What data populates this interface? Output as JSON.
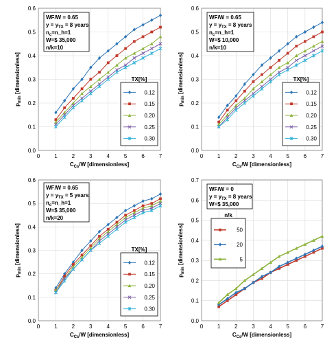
{
  "chart_data": [
    {
      "type": "line",
      "xlabel": "C_Cs/W [dimensionless]",
      "ylabel": "p_min [dimensionless]",
      "xlim": [
        0,
        7
      ],
      "ylim": [
        0,
        0.6
      ],
      "xticks": [
        0,
        1,
        2,
        3,
        4,
        5,
        6,
        7
      ],
      "yticks": [
        0,
        0.1,
        0.2,
        0.3,
        0.4,
        0.5,
        0.6
      ],
      "grid": true,
      "annotation": [
        "WF/W = 0.65",
        "y = y_TX = 8 years",
        "n_c=n_h=1",
        "W=$ 35,000",
        "n/k=10"
      ],
      "legend_title": "TX[%]",
      "legend_position": "right-middle",
      "x": [
        1,
        1.5,
        2,
        2.5,
        3,
        3.5,
        4,
        4.5,
        5,
        5.5,
        6,
        6.5,
        7
      ],
      "series": [
        {
          "name": "0.12",
          "color": "#2e75b6",
          "marker": "diamond",
          "values": [
            0.16,
            0.21,
            0.26,
            0.3,
            0.35,
            0.39,
            0.42,
            0.45,
            0.48,
            0.51,
            0.53,
            0.55,
            0.57
          ]
        },
        {
          "name": "0.15",
          "color": "#c0392b",
          "marker": "square",
          "values": [
            0.13,
            0.18,
            0.22,
            0.26,
            0.3,
            0.33,
            0.37,
            0.4,
            0.43,
            0.46,
            0.48,
            0.5,
            0.52
          ]
        },
        {
          "name": "0.20",
          "color": "#8db33d",
          "marker": "triangle",
          "values": [
            0.12,
            0.16,
            0.2,
            0.24,
            0.27,
            0.3,
            0.33,
            0.36,
            0.39,
            0.41,
            0.43,
            0.45,
            0.48
          ]
        },
        {
          "name": "0.25",
          "color": "#7b5ea7",
          "marker": "x",
          "values": [
            0.11,
            0.15,
            0.19,
            0.22,
            0.25,
            0.28,
            0.31,
            0.34,
            0.36,
            0.39,
            0.41,
            0.43,
            0.45
          ]
        },
        {
          "name": "0.30",
          "color": "#2fb0d6",
          "marker": "star",
          "values": [
            0.1,
            0.14,
            0.18,
            0.21,
            0.24,
            0.27,
            0.3,
            0.33,
            0.35,
            0.37,
            0.39,
            0.41,
            0.43
          ]
        }
      ]
    },
    {
      "type": "line",
      "xlabel": "C_Cs/W [dimensionless]",
      "ylabel": "p_min [dimensionless]",
      "xlim": [
        0,
        7
      ],
      "ylim": [
        0,
        0.6
      ],
      "xticks": [
        0,
        1,
        2,
        3,
        4,
        5,
        6,
        7
      ],
      "yticks": [
        0,
        0.1,
        0.2,
        0.3,
        0.4,
        0.5,
        0.6
      ],
      "grid": true,
      "annotation": [
        "WF/W = 0.65",
        "y = y_TX = 8 years",
        "n_c=n_h=1",
        "W=$ 10,000",
        "n/k=10"
      ],
      "legend_title": "TX[%]",
      "legend_position": "right-middle",
      "x": [
        1,
        1.5,
        2,
        2.5,
        3,
        3.5,
        4,
        4.5,
        5,
        5.5,
        6,
        6.5,
        7
      ],
      "series": [
        {
          "name": "0.12",
          "color": "#2e75b6",
          "marker": "diamond",
          "values": [
            0.14,
            0.19,
            0.23,
            0.28,
            0.32,
            0.36,
            0.39,
            0.42,
            0.45,
            0.48,
            0.5,
            0.52,
            0.54
          ]
        },
        {
          "name": "0.15",
          "color": "#c0392b",
          "marker": "square",
          "values": [
            0.12,
            0.17,
            0.21,
            0.25,
            0.29,
            0.32,
            0.35,
            0.38,
            0.41,
            0.44,
            0.46,
            0.48,
            0.5
          ]
        },
        {
          "name": "0.20",
          "color": "#8db33d",
          "marker": "triangle",
          "values": [
            0.11,
            0.15,
            0.19,
            0.22,
            0.26,
            0.29,
            0.32,
            0.35,
            0.37,
            0.4,
            0.42,
            0.44,
            0.46
          ]
        },
        {
          "name": "0.25",
          "color": "#7b5ea7",
          "marker": "x",
          "values": [
            0.1,
            0.14,
            0.18,
            0.21,
            0.24,
            0.27,
            0.3,
            0.33,
            0.35,
            0.38,
            0.4,
            0.42,
            0.44
          ]
        },
        {
          "name": "0.30",
          "color": "#2fb0d6",
          "marker": "star",
          "values": [
            0.1,
            0.13,
            0.17,
            0.2,
            0.23,
            0.26,
            0.29,
            0.32,
            0.34,
            0.36,
            0.38,
            0.4,
            0.42
          ]
        }
      ]
    },
    {
      "type": "line",
      "xlabel": "C_Cs/W [dimensionless]",
      "ylabel": "p_min [dimensionless]",
      "xlim": [
        0,
        7
      ],
      "ylim": [
        0,
        0.6
      ],
      "xticks": [
        0,
        1,
        2,
        3,
        4,
        5,
        6,
        7
      ],
      "yticks": [
        0,
        0.1,
        0.2,
        0.3,
        0.4,
        0.5,
        0.6
      ],
      "grid": true,
      "annotation": [
        "WF/W = 0.65",
        "y = y_TX = 5 years",
        "n_c=n_h=1",
        "W=$ 35,000",
        "n/k=20"
      ],
      "legend_title": "TX[%]",
      "legend_position": "right-middle",
      "x": [
        1,
        1.5,
        2,
        2.5,
        3,
        3.5,
        4,
        4.5,
        5,
        5.5,
        6,
        6.5,
        7
      ],
      "series": [
        {
          "name": "0.12",
          "color": "#2e75b6",
          "marker": "diamond",
          "values": [
            0.14,
            0.2,
            0.25,
            0.3,
            0.34,
            0.38,
            0.41,
            0.44,
            0.47,
            0.49,
            0.51,
            0.52,
            0.54
          ]
        },
        {
          "name": "0.15",
          "color": "#c0392b",
          "marker": "square",
          "values": [
            0.13,
            0.19,
            0.24,
            0.28,
            0.32,
            0.36,
            0.39,
            0.42,
            0.45,
            0.47,
            0.49,
            0.5,
            0.52
          ]
        },
        {
          "name": "0.20",
          "color": "#8db33d",
          "marker": "triangle",
          "values": [
            0.13,
            0.18,
            0.23,
            0.27,
            0.31,
            0.35,
            0.38,
            0.41,
            0.44,
            0.46,
            0.48,
            0.49,
            0.51
          ]
        },
        {
          "name": "0.25",
          "color": "#7b5ea7",
          "marker": "x",
          "values": [
            0.12,
            0.18,
            0.22,
            0.26,
            0.3,
            0.34,
            0.37,
            0.4,
            0.43,
            0.45,
            0.47,
            0.48,
            0.5
          ]
        },
        {
          "name": "0.30",
          "color": "#2fb0d6",
          "marker": "star",
          "values": [
            0.12,
            0.17,
            0.22,
            0.26,
            0.3,
            0.33,
            0.36,
            0.39,
            0.42,
            0.44,
            0.46,
            0.47,
            0.49
          ]
        }
      ]
    },
    {
      "type": "line",
      "xlabel": "C_Cs/W [dimensionless]",
      "ylabel": "p_min [dimensionless]",
      "xlim": [
        0,
        7
      ],
      "ylim": [
        0,
        0.7
      ],
      "xticks": [
        0,
        1,
        2,
        3,
        4,
        5,
        6,
        7
      ],
      "yticks": [
        0,
        0.1,
        0.2,
        0.3,
        0.4,
        0.5,
        0.6,
        0.7
      ],
      "grid": true,
      "annotation": [
        "WF/W = 0",
        "y = y_TX = 8 years",
        "W=$ 35,000"
      ],
      "legend_title": "n/k",
      "legend_position": "left-middle",
      "x": [
        1,
        1.5,
        2,
        2.5,
        3,
        3.5,
        4,
        4.5,
        5,
        5.5,
        6,
        6.5,
        7
      ],
      "series": [
        {
          "name": "50",
          "color": "#c0392b",
          "marker": "square",
          "values": [
            0.07,
            0.1,
            0.13,
            0.16,
            0.19,
            0.21,
            0.24,
            0.26,
            0.28,
            0.3,
            0.32,
            0.34,
            0.36
          ]
        },
        {
          "name": "20",
          "color": "#2e75b6",
          "marker": "diamond",
          "values": [
            0.08,
            0.11,
            0.14,
            0.16,
            0.19,
            0.22,
            0.24,
            0.27,
            0.29,
            0.31,
            0.33,
            0.35,
            0.37
          ]
        },
        {
          "name": "5",
          "color": "#8db33d",
          "marker": "triangle",
          "values": [
            0.09,
            0.13,
            0.16,
            0.2,
            0.23,
            0.26,
            0.29,
            0.32,
            0.34,
            0.36,
            0.38,
            0.4,
            0.42
          ]
        }
      ]
    }
  ]
}
